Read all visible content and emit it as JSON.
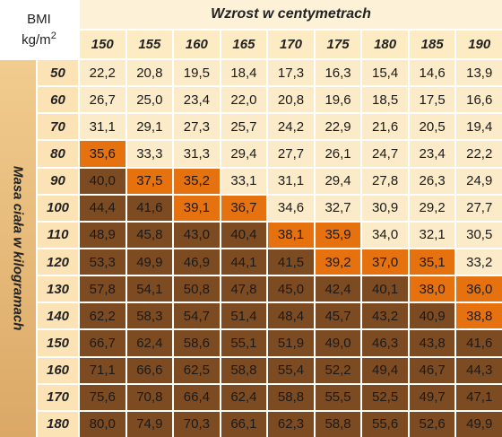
{
  "corner": {
    "title": "BMI",
    "unit": "kg/m",
    "unit_exp": "2"
  },
  "column_title": "Wzrost w centymetrach",
  "row_title": "Masa ciała w kilogramach",
  "columns": [
    "150",
    "155",
    "160",
    "165",
    "170",
    "175",
    "180",
    "185",
    "190"
  ],
  "colors": {
    "light": "#fcebc8",
    "orange": "#e5720f",
    "brown": "#7d4b22"
  },
  "rows": [
    {
      "label": "50",
      "values": [
        "22,2",
        "20,8",
        "19,5",
        "18,4",
        "17,3",
        "16,3",
        "15,4",
        "14,6",
        "13,9"
      ],
      "shades": [
        "light",
        "light",
        "light",
        "light",
        "light",
        "light",
        "light",
        "light",
        "light"
      ]
    },
    {
      "label": "60",
      "values": [
        "26,7",
        "25,0",
        "23,4",
        "22,0",
        "20,8",
        "19,6",
        "18,5",
        "17,5",
        "16,6"
      ],
      "shades": [
        "light",
        "light",
        "light",
        "light",
        "light",
        "light",
        "light",
        "light",
        "light"
      ]
    },
    {
      "label": "70",
      "values": [
        "31,1",
        "29,1",
        "27,3",
        "25,7",
        "24,2",
        "22,9",
        "21,6",
        "20,5",
        "19,4"
      ],
      "shades": [
        "light",
        "light",
        "light",
        "light",
        "light",
        "light",
        "light",
        "light",
        "light"
      ]
    },
    {
      "label": "80",
      "values": [
        "35,6",
        "33,3",
        "31,3",
        "29,4",
        "27,7",
        "26,1",
        "24,7",
        "23,4",
        "22,2"
      ],
      "shades": [
        "orange",
        "light",
        "light",
        "light",
        "light",
        "light",
        "light",
        "light",
        "light"
      ]
    },
    {
      "label": "90",
      "values": [
        "40,0",
        "37,5",
        "35,2",
        "33,1",
        "31,1",
        "29,4",
        "27,8",
        "26,3",
        "24,9"
      ],
      "shades": [
        "brown",
        "orange",
        "orange",
        "light",
        "light",
        "light",
        "light",
        "light",
        "light"
      ]
    },
    {
      "label": "100",
      "values": [
        "44,4",
        "41,6",
        "39,1",
        "36,7",
        "34,6",
        "32,7",
        "30,9",
        "29,2",
        "27,7"
      ],
      "shades": [
        "brown",
        "brown",
        "orange",
        "orange",
        "light",
        "light",
        "light",
        "light",
        "light"
      ]
    },
    {
      "label": "110",
      "values": [
        "48,9",
        "45,8",
        "43,0",
        "40,4",
        "38,1",
        "35,9",
        "34,0",
        "32,1",
        "30,5"
      ],
      "shades": [
        "brown",
        "brown",
        "brown",
        "brown",
        "orange",
        "orange",
        "light",
        "light",
        "light"
      ]
    },
    {
      "label": "120",
      "values": [
        "53,3",
        "49,9",
        "46,9",
        "44,1",
        "41,5",
        "39,2",
        "37,0",
        "35,1",
        "33,2"
      ],
      "shades": [
        "brown",
        "brown",
        "brown",
        "brown",
        "brown",
        "orange",
        "orange",
        "orange",
        "light"
      ]
    },
    {
      "label": "130",
      "values": [
        "57,8",
        "54,1",
        "50,8",
        "47,8",
        "45,0",
        "42,4",
        "40,1",
        "38,0",
        "36,0"
      ],
      "shades": [
        "brown",
        "brown",
        "brown",
        "brown",
        "brown",
        "brown",
        "brown",
        "orange",
        "orange"
      ]
    },
    {
      "label": "140",
      "values": [
        "62,2",
        "58,3",
        "54,7",
        "51,4",
        "48,4",
        "45,7",
        "43,2",
        "40,9",
        "38,8"
      ],
      "shades": [
        "brown",
        "brown",
        "brown",
        "brown",
        "brown",
        "brown",
        "brown",
        "brown",
        "orange"
      ]
    },
    {
      "label": "150",
      "values": [
        "66,7",
        "62,4",
        "58,6",
        "55,1",
        "51,9",
        "49,0",
        "46,3",
        "43,8",
        "41,6"
      ],
      "shades": [
        "brown",
        "brown",
        "brown",
        "brown",
        "brown",
        "brown",
        "brown",
        "brown",
        "brown"
      ]
    },
    {
      "label": "160",
      "values": [
        "71,1",
        "66,6",
        "62,5",
        "58,8",
        "55,4",
        "52,2",
        "49,4",
        "46,7",
        "44,3"
      ],
      "shades": [
        "brown",
        "brown",
        "brown",
        "brown",
        "brown",
        "brown",
        "brown",
        "brown",
        "brown"
      ]
    },
    {
      "label": "170",
      "values": [
        "75,6",
        "70,8",
        "66,4",
        "62,4",
        "58,8",
        "55,5",
        "52,5",
        "49,7",
        "47,1"
      ],
      "shades": [
        "brown",
        "brown",
        "brown",
        "brown",
        "brown",
        "brown",
        "brown",
        "brown",
        "brown"
      ]
    },
    {
      "label": "180",
      "values": [
        "80,0",
        "74,9",
        "70,3",
        "66,1",
        "62,3",
        "58,8",
        "55,6",
        "52,6",
        "49,9"
      ],
      "shades": [
        "brown",
        "brown",
        "brown",
        "brown",
        "brown",
        "brown",
        "brown",
        "brown",
        "brown"
      ]
    }
  ]
}
